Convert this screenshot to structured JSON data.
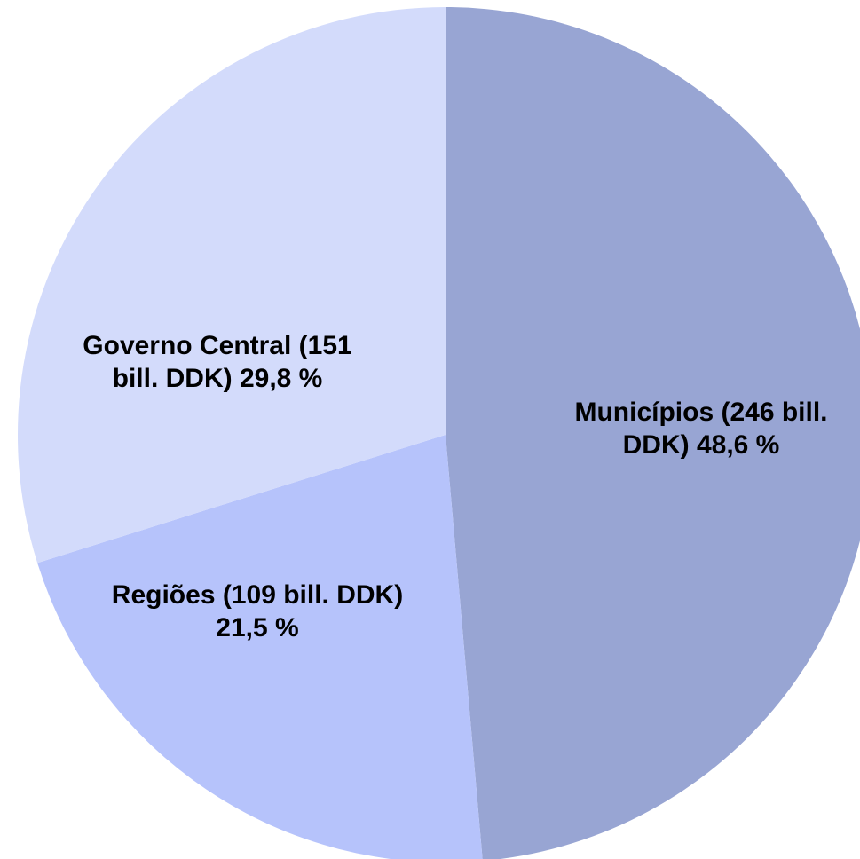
{
  "chart_data": {
    "type": "pie",
    "start_angle_deg": 0,
    "direction": "clockwise",
    "slices": [
      {
        "name": "Municípios",
        "value": 246,
        "percent": 48.6,
        "color": "#98a5d3",
        "label_lines": [
          "Municípios (246 bill.",
          "DDK) 48,6 %"
        ]
      },
      {
        "name": "Regiões",
        "value": 109,
        "percent": 21.5,
        "color": "#b6c3fb",
        "label_lines": [
          "Regiões (109 bill. DDK)",
          "21,5 %"
        ]
      },
      {
        "name": "Governo Central",
        "value": 151,
        "percent": 29.8,
        "color": "#d3dbfb",
        "label_lines": [
          "Governo Central (151",
          "bill. DDK) 29,8 %"
        ]
      }
    ]
  }
}
